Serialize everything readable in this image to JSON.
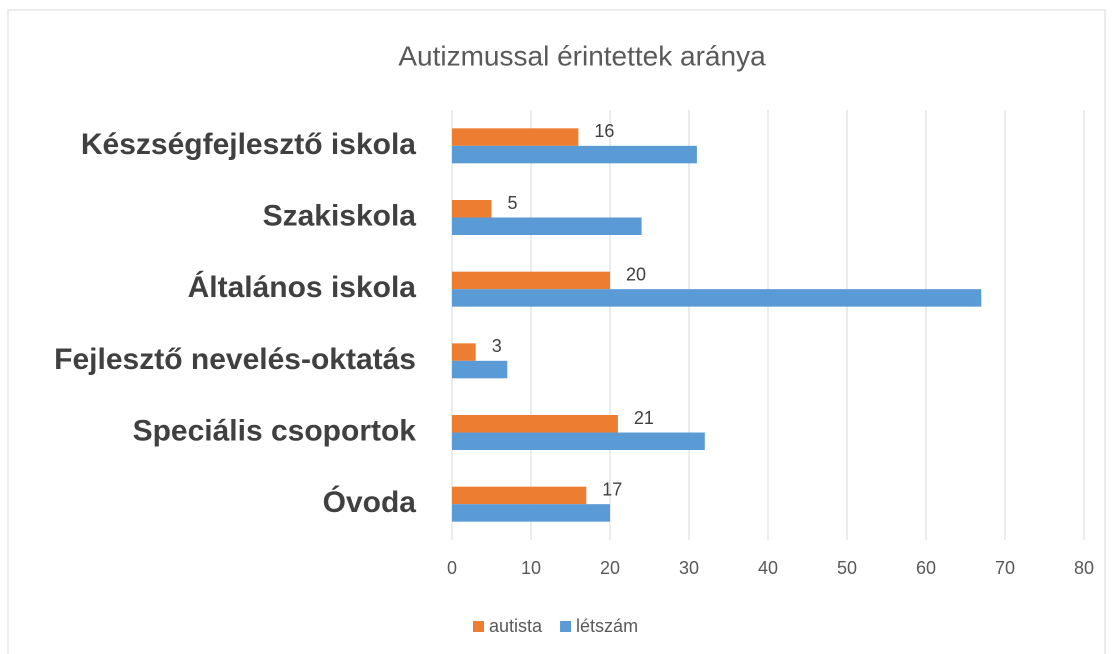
{
  "chart_data": {
    "type": "bar",
    "orientation": "horizontal",
    "title": "Autizmussal érintettek aránya",
    "categories": [
      "Készségfejlesztő iskola",
      "Szakiskola",
      "Általános iskola",
      "Fejlesztő nevelés-oktatás",
      "Speciális csoportok",
      "Óvoda"
    ],
    "series": [
      {
        "name": "autista",
        "color": "#ed7d31",
        "values": [
          16,
          5,
          20,
          3,
          21,
          17
        ]
      },
      {
        "name": "létszám",
        "color": "#5b9bd5",
        "values": [
          31,
          24,
          67,
          7,
          32,
          20
        ]
      }
    ],
    "xlim": [
      0,
      80
    ],
    "xticks": [
      0,
      10,
      20,
      30,
      40,
      50,
      60,
      70,
      80
    ],
    "grid": true,
    "legend": "bottom"
  }
}
